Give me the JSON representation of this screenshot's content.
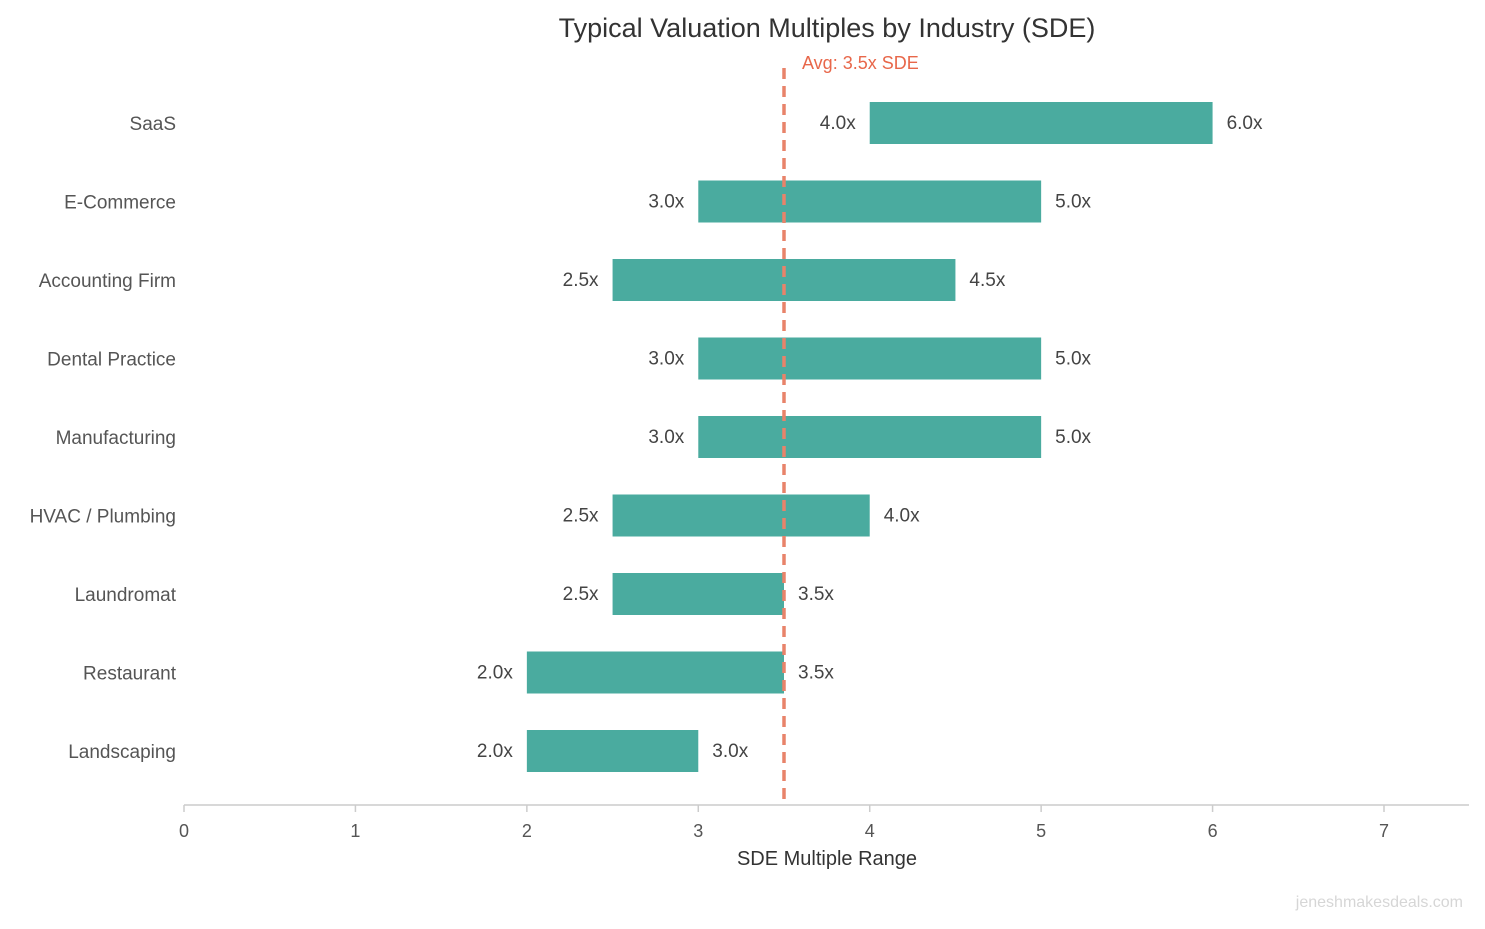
{
  "chart_data": {
    "type": "bar",
    "orientation": "horizontal-range",
    "title": "Typical Valuation Multiples by Industry (SDE)",
    "xlabel": "SDE Multiple Range",
    "ylabel": "",
    "xlim": [
      0,
      7.5
    ],
    "xticks": [
      "0",
      "1",
      "2",
      "3",
      "4",
      "5",
      "6",
      "7"
    ],
    "grid": false,
    "categories": [
      "SaaS",
      "E-Commerce",
      "Accounting Firm",
      "Dental Practice",
      "Manufacturing",
      "HVAC / Plumbing",
      "Laundromat",
      "Restaurant",
      "Landscaping"
    ],
    "low": [
      4.0,
      3.0,
      2.5,
      3.0,
      3.0,
      2.5,
      2.5,
      2.0,
      2.0
    ],
    "high": [
      6.0,
      5.0,
      4.5,
      5.0,
      5.0,
      4.0,
      3.5,
      3.5,
      3.0
    ],
    "low_labels": [
      "4.0x",
      "3.0x",
      "2.5x",
      "3.0x",
      "3.0x",
      "2.5x",
      "2.5x",
      "2.0x",
      "2.0x"
    ],
    "high_labels": [
      "6.0x",
      "5.0x",
      "4.5x",
      "5.0x",
      "5.0x",
      "4.0x",
      "3.5x",
      "3.5x",
      "3.0x"
    ],
    "reference_line": {
      "value": 3.5,
      "label": "Avg: 3.5x SDE",
      "style": "dashed"
    },
    "colors": {
      "bar": "#4AAB9F",
      "reference_line": "#E8836A",
      "reference_label": "#E8674A",
      "text": "#444444",
      "axis": "#CCCCCC"
    }
  },
  "watermark": "jeneshmakesdeals.com"
}
